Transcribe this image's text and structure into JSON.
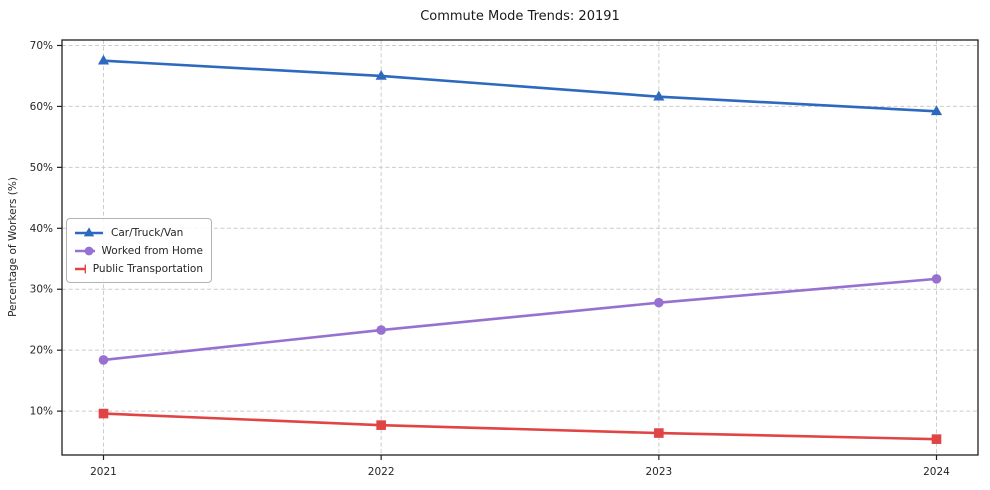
{
  "window": {
    "title": "Commute Mode Trends: 20191"
  },
  "colors": {
    "background": "#ffffff",
    "grid": "#cccccc",
    "spine": "#1f1f1f",
    "text": "#262626",
    "blue": "#2d69be",
    "purple": "#9671d1",
    "red": "#e04444"
  },
  "chart_data": {
    "type": "line",
    "title": "Commute Mode Trends: 20191",
    "xlabel": "",
    "ylabel": "Percentage of Workers (%)",
    "x": [
      2021,
      2022,
      2023,
      2024
    ],
    "x_tick_labels": [
      "2021",
      "2022",
      "2023",
      "2024"
    ],
    "y_ticks": [
      10,
      20,
      30,
      40,
      50,
      60,
      70
    ],
    "y_tick_labels": [
      "10%",
      "20%",
      "30%",
      "40%",
      "50%",
      "60%",
      "70%"
    ],
    "ylim": [
      2.8,
      70.9
    ],
    "grid": "dashed-both-axes",
    "legend_position": "center-left",
    "series": [
      {
        "name": "Car/Truck/Van",
        "color": "#2d69be",
        "marker": "triangle",
        "values": [
          67.5,
          65.0,
          61.6,
          59.2
        ]
      },
      {
        "name": "Worked from Home",
        "color": "#9671d1",
        "marker": "circle",
        "values": [
          18.4,
          23.3,
          27.8,
          31.7
        ]
      },
      {
        "name": "Public Transportation",
        "color": "#e04444",
        "marker": "square",
        "values": [
          9.6,
          7.7,
          6.4,
          5.4
        ]
      }
    ]
  }
}
